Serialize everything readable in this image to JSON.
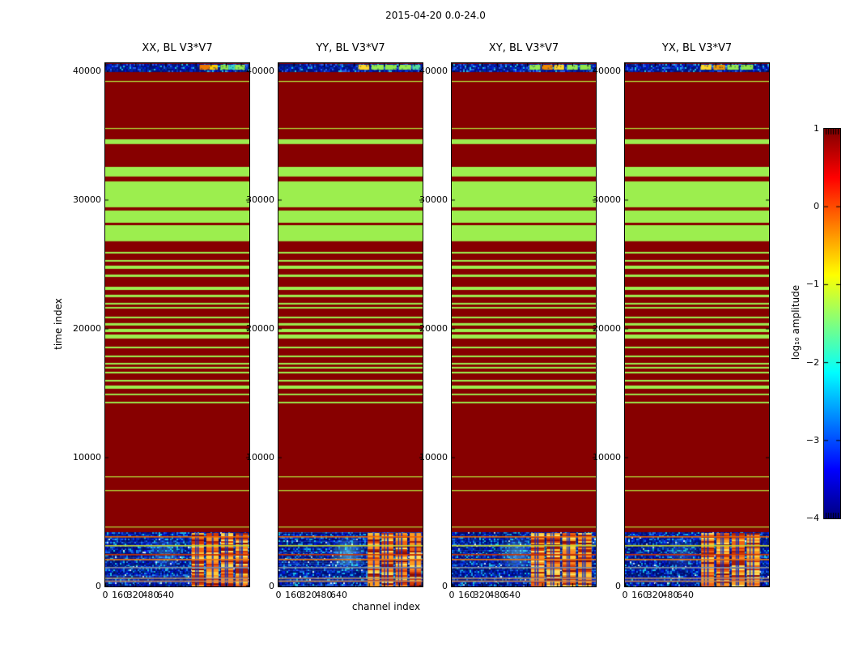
{
  "figure": {
    "suptitle": "2015-04-20 0.0-24.0"
  },
  "chart_data": {
    "type": "heatmap",
    "title": "2015-04-20 0.0-24.0",
    "xlabel": "channel index",
    "ylabel": "time index",
    "colormap": "jet",
    "x_range": [
      0,
      1530
    ],
    "y_range": [
      0,
      40630
    ],
    "x_tick_step": 160,
    "x_tick_labels": [
      "0",
      "160",
      "320",
      "480",
      "640"
    ],
    "x_tick_values": [
      0,
      160,
      320,
      480,
      640
    ],
    "y_tick_labels": [
      "0",
      "10000",
      "20000",
      "30000",
      "40000"
    ],
    "y_tick_values": [
      0,
      10000,
      20000,
      30000,
      40000
    ],
    "value_colors": {
      "background_red": "#870000",
      "band_green": "#9cee4e",
      "thin_line": "#b4e63c",
      "noise_base": "#000a96"
    },
    "green_bands": [
      [
        34350,
        34720
      ],
      [
        31830,
        32580
      ],
      [
        29440,
        31450
      ],
      [
        28240,
        29190
      ],
      [
        26800,
        28050
      ]
    ],
    "stripe_bands": [
      [
        25850,
        25980
      ],
      [
        25220,
        25350
      ],
      [
        24660,
        24910
      ],
      [
        24030,
        24220
      ],
      [
        23020,
        23270
      ],
      [
        22460,
        22650
      ],
      [
        21890,
        22020
      ],
      [
        21580,
        21700
      ],
      [
        20820,
        20950
      ],
      [
        20260,
        20450
      ],
      [
        19750,
        20000
      ],
      [
        19250,
        19560
      ],
      [
        18490,
        18620
      ],
      [
        17800,
        17930
      ],
      [
        17230,
        17360
      ],
      [
        16920,
        17050
      ],
      [
        16540,
        16670
      ],
      [
        15910,
        16040
      ],
      [
        15350,
        15600
      ],
      [
        14850,
        14970
      ],
      [
        14220,
        14340
      ]
    ],
    "thin_lines": [
      39250,
      35600,
      8550,
      7480,
      4650
    ],
    "top_noise_band": [
      40060,
      40570
    ],
    "bottom_noise_band": [
      0,
      4210
    ],
    "noise_lines": [
      {
        "t": 3900,
        "color": "#ee6600"
      },
      {
        "t": 3210,
        "color": "#c8d832"
      },
      {
        "t": 2520,
        "color": "#cc3300"
      },
      {
        "t": 2140,
        "color": "#ee7711"
      },
      {
        "t": 1510,
        "color": "#7f8fa0"
      },
      {
        "t": 690,
        "color": "#b09070"
      },
      {
        "t": 460,
        "color": "#cc8855"
      }
    ],
    "panels": [
      {
        "title": "XX, BL V3*V7",
        "seed": 11,
        "col_start": 0.6,
        "col_end": 0.99,
        "cyan_x": 0.42,
        "cyan_alpha": 0.25,
        "top_segments": [
          [
            0.655,
            0.725,
            "#ee7700"
          ],
          [
            0.725,
            0.78,
            "#ffcc00"
          ],
          [
            0.8,
            0.855,
            "#8fe84a"
          ],
          [
            0.855,
            0.9,
            "#3fd8c8"
          ],
          [
            0.9,
            0.97,
            "#96ec50"
          ]
        ]
      },
      {
        "title": "YY, BL V3*V7",
        "seed": 22,
        "col_start": 0.62,
        "col_end": 0.99,
        "cyan_x": 0.48,
        "cyan_alpha": 0.5,
        "top_segments": [
          [
            0.555,
            0.63,
            "#ffd827"
          ],
          [
            0.645,
            0.73,
            "#96ec50"
          ],
          [
            0.74,
            0.82,
            "#8fe84a"
          ],
          [
            0.835,
            0.92,
            "#96ec50"
          ],
          [
            0.93,
            0.985,
            "#52dda0"
          ]
        ]
      },
      {
        "title": "XY, BL V3*V7",
        "seed": 33,
        "col_start": 0.55,
        "col_end": 0.97,
        "cyan_x": 0.45,
        "cyan_alpha": 0.45,
        "top_segments": [
          [
            0.54,
            0.615,
            "#96ec50"
          ],
          [
            0.625,
            0.7,
            "#ee8800"
          ],
          [
            0.71,
            0.78,
            "#ffd827"
          ],
          [
            0.8,
            0.875,
            "#96ec50"
          ],
          [
            0.89,
            0.965,
            "#8fe84a"
          ]
        ]
      },
      {
        "title": "YX, BL V3*V7",
        "seed": 44,
        "col_start": 0.53,
        "col_end": 0.935,
        "cyan_x": 0.4,
        "cyan_alpha": 0.2,
        "top_segments": [
          [
            0.525,
            0.6,
            "#ffd827"
          ],
          [
            0.615,
            0.695,
            "#ee9900"
          ],
          [
            0.71,
            0.79,
            "#96ec50"
          ],
          [
            0.805,
            0.89,
            "#8fe84a"
          ]
        ]
      }
    ],
    "colorbar": {
      "label": "log₁₀ amplitude",
      "tick_labels": [
        "1",
        "0",
        "−1",
        "−2",
        "−3",
        "−4"
      ],
      "tick_values": [
        1,
        0,
        -1,
        -2,
        -3,
        -4
      ],
      "vmin": -4,
      "vmax": 1
    }
  }
}
